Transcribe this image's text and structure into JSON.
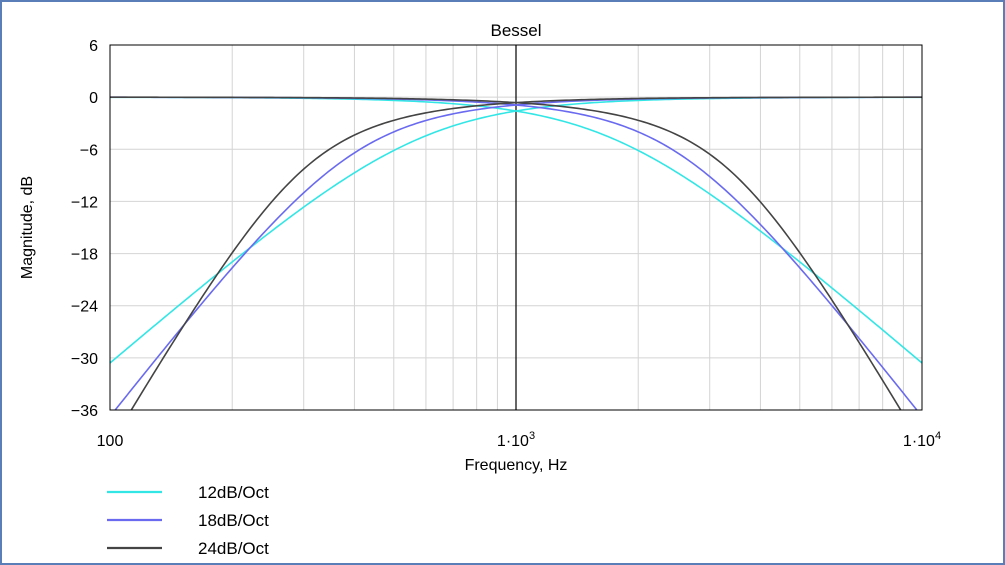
{
  "chart_data": {
    "type": "line",
    "title": "Bessel",
    "xlabel": "Frequency, Hz",
    "ylabel": "Magnitude, dB",
    "xscale": "log",
    "xlim": [
      100,
      10000
    ],
    "ylim": [
      -36,
      6
    ],
    "grid": true,
    "legend_position": "bottom-left",
    "x_ticks": [
      {
        "value": 100,
        "label": "100"
      },
      {
        "value": 1000,
        "label": "1·10",
        "exp": "3"
      },
      {
        "value": 10000,
        "label": "1·10",
        "exp": "4"
      }
    ],
    "y_ticks": [
      6,
      0,
      -6,
      -12,
      -18,
      -24,
      -30,
      -36
    ],
    "marker": {
      "x": 1000
    },
    "series": [
      {
        "name": "12dB/Oct",
        "color": "#33e6e6",
        "order": 2
      },
      {
        "name": "18dB/Oct",
        "color": "#6a6af0",
        "order": 3
      },
      {
        "name": "24dB/Oct",
        "color": "#444444",
        "order": 4
      }
    ]
  }
}
